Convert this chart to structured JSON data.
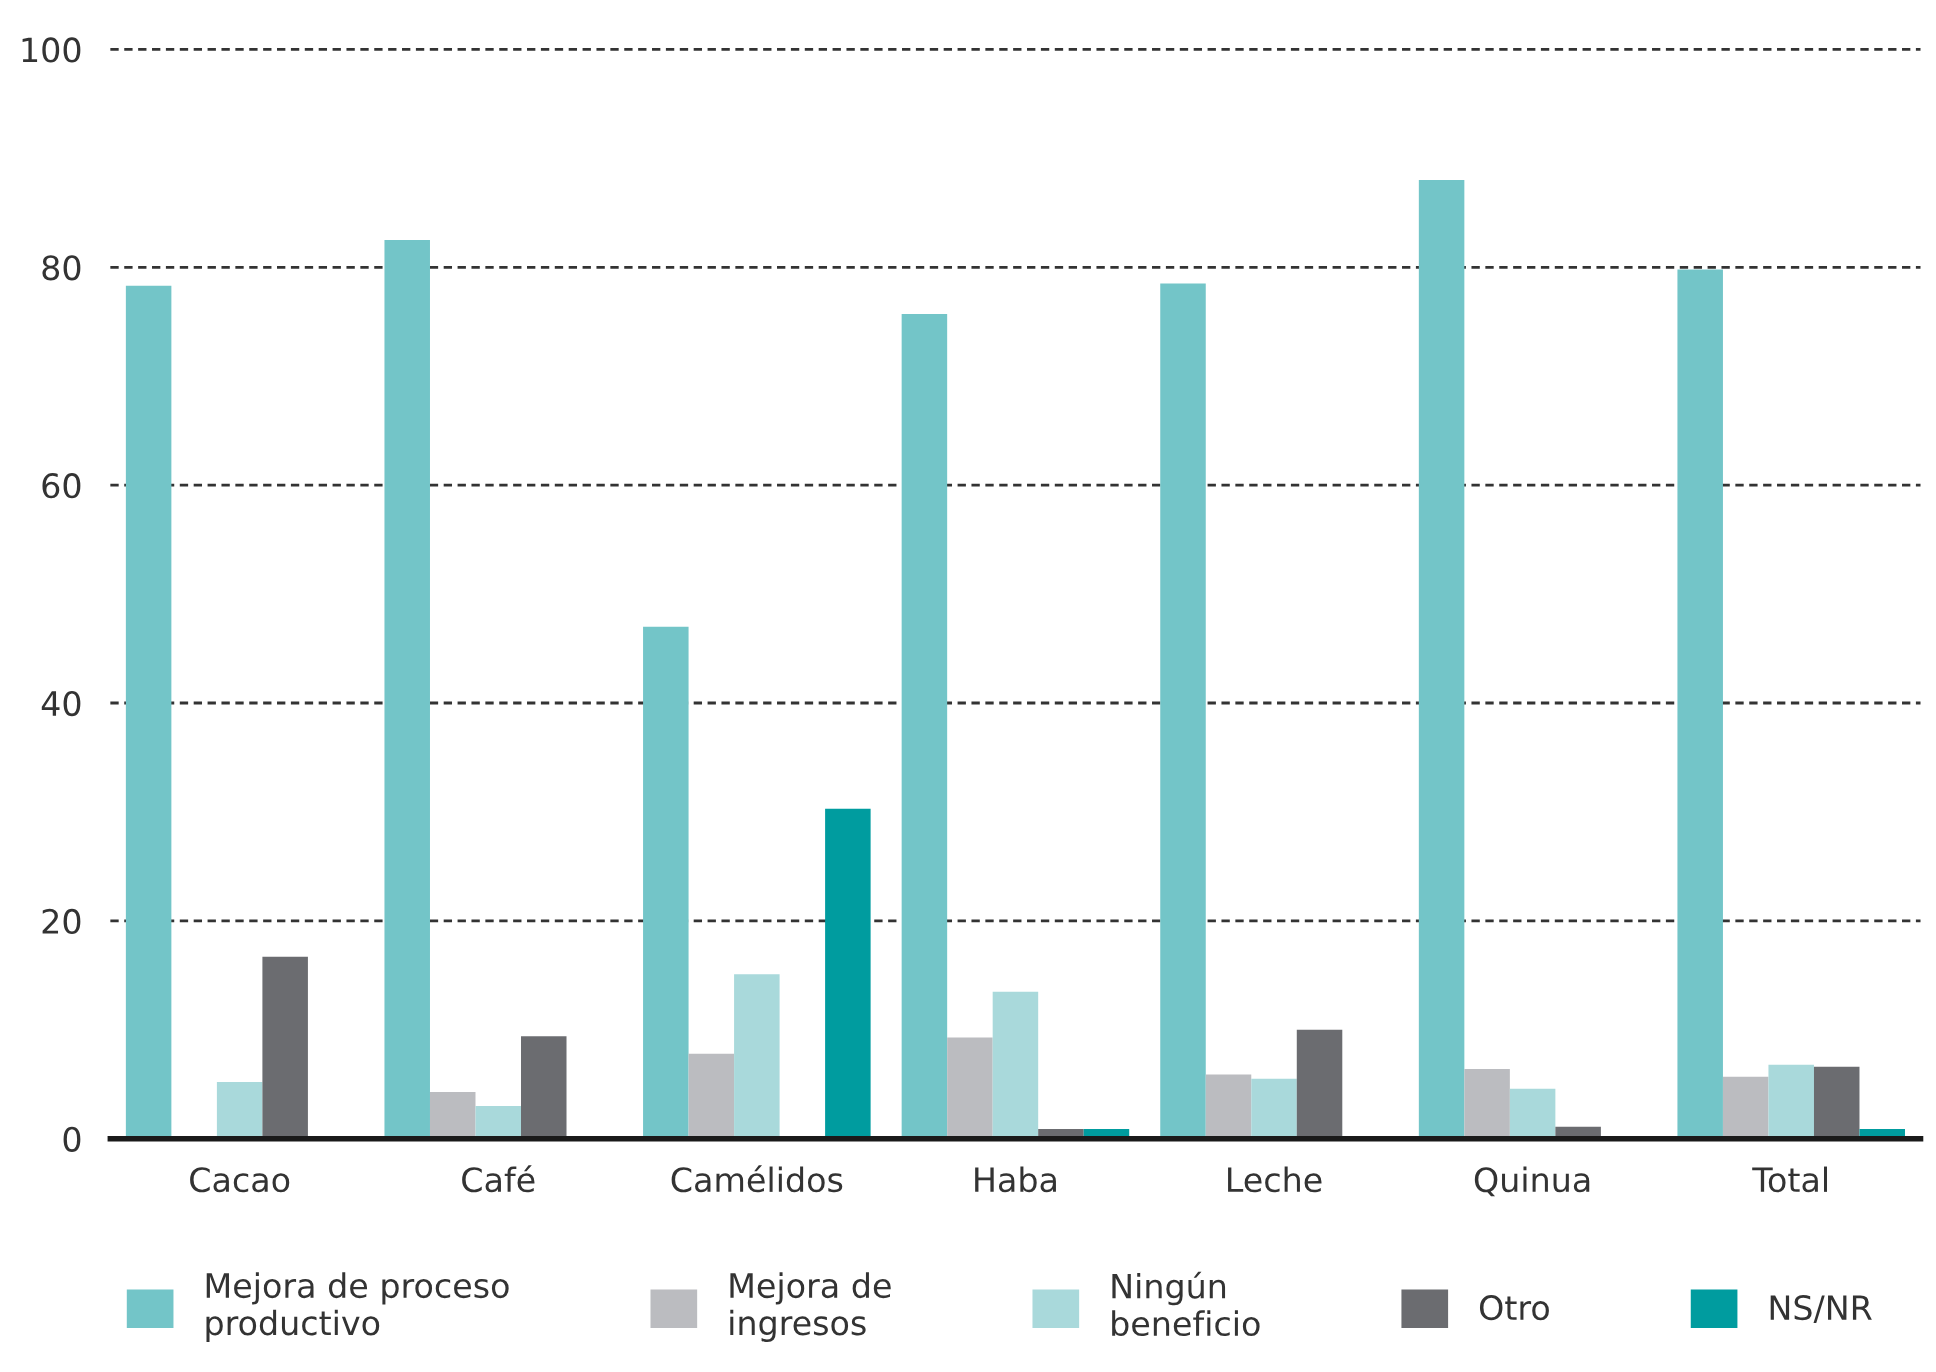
{
  "chart_data": {
    "type": "bar",
    "categories": [
      "Cacao",
      "Café",
      "Camélidos",
      "Haba",
      "Leche",
      "Quinua",
      "Total"
    ],
    "series": [
      {
        "name": "Mejora de proceso\nproductivo",
        "color": "#73c5c8",
        "values": [
          78.3,
          82.5,
          47.0,
          75.7,
          78.5,
          88.0,
          79.8
        ]
      },
      {
        "name": "Mejora de\ningresos",
        "color": "#bbbcc0",
        "values": [
          0,
          4.3,
          7.8,
          9.3,
          5.9,
          6.4,
          5.7
        ]
      },
      {
        "name": "Ningún\nbeneficio",
        "color": "#a9d9db",
        "values": [
          5.2,
          3.0,
          15.1,
          13.5,
          5.5,
          4.6,
          6.8
        ]
      },
      {
        "name": "Otro",
        "color": "#6b6c70",
        "values": [
          16.7,
          9.4,
          0,
          0.9,
          10.0,
          1.1,
          6.6
        ]
      },
      {
        "name": "NS/NR",
        "color": "#009c9f",
        "values": [
          0,
          0,
          30.3,
          0.9,
          0,
          0,
          0.9
        ]
      }
    ],
    "ylim": [
      0,
      100
    ],
    "yticks": [
      0,
      20,
      40,
      60,
      80,
      100
    ],
    "grid": "y",
    "legend": "bottom"
  }
}
